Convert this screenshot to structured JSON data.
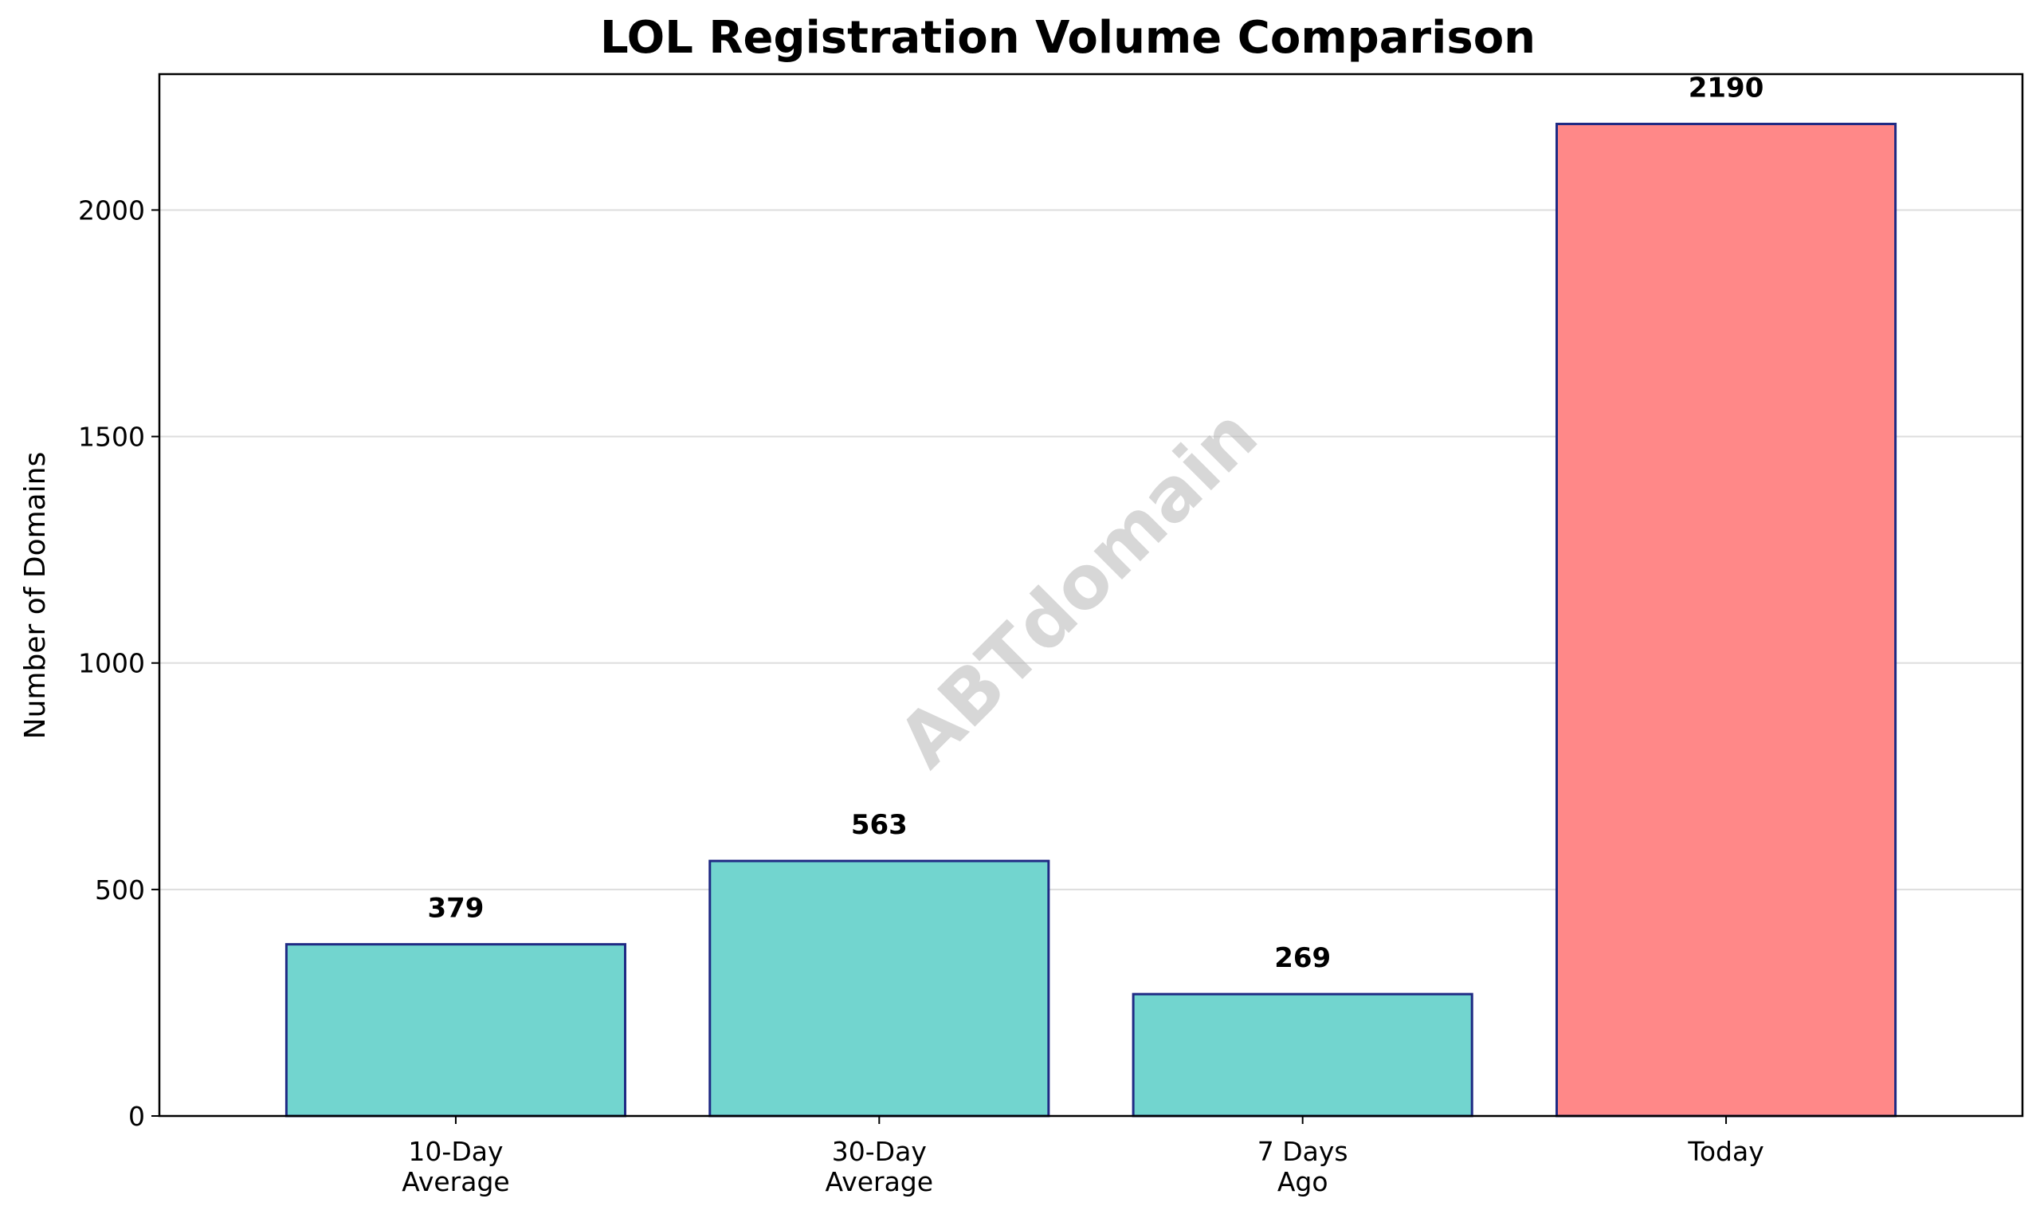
{
  "chart_data": {
    "type": "bar",
    "title": "LOL Registration Volume Comparison",
    "xlabel": "",
    "ylabel": "Number of Domains",
    "categories": [
      [
        "10-Day",
        "Average"
      ],
      [
        "30-Day",
        "Average"
      ],
      [
        "7 Days",
        "Ago"
      ],
      [
        "Today"
      ]
    ],
    "values": [
      379,
      563,
      269,
      2190
    ],
    "data_labels": [
      "379",
      "563",
      "269",
      "2190"
    ],
    "bar_colors": [
      "#72d5cf",
      "#72d5cf",
      "#72d5cf",
      "#ff8888"
    ],
    "bar_edge_color": "#1f2a84",
    "ylim": [
      0,
      2300
    ],
    "yticks": [
      0,
      500,
      1000,
      1500,
      2000
    ],
    "grid": "horizontal",
    "legend": "none"
  },
  "watermark": "ABTdomain"
}
